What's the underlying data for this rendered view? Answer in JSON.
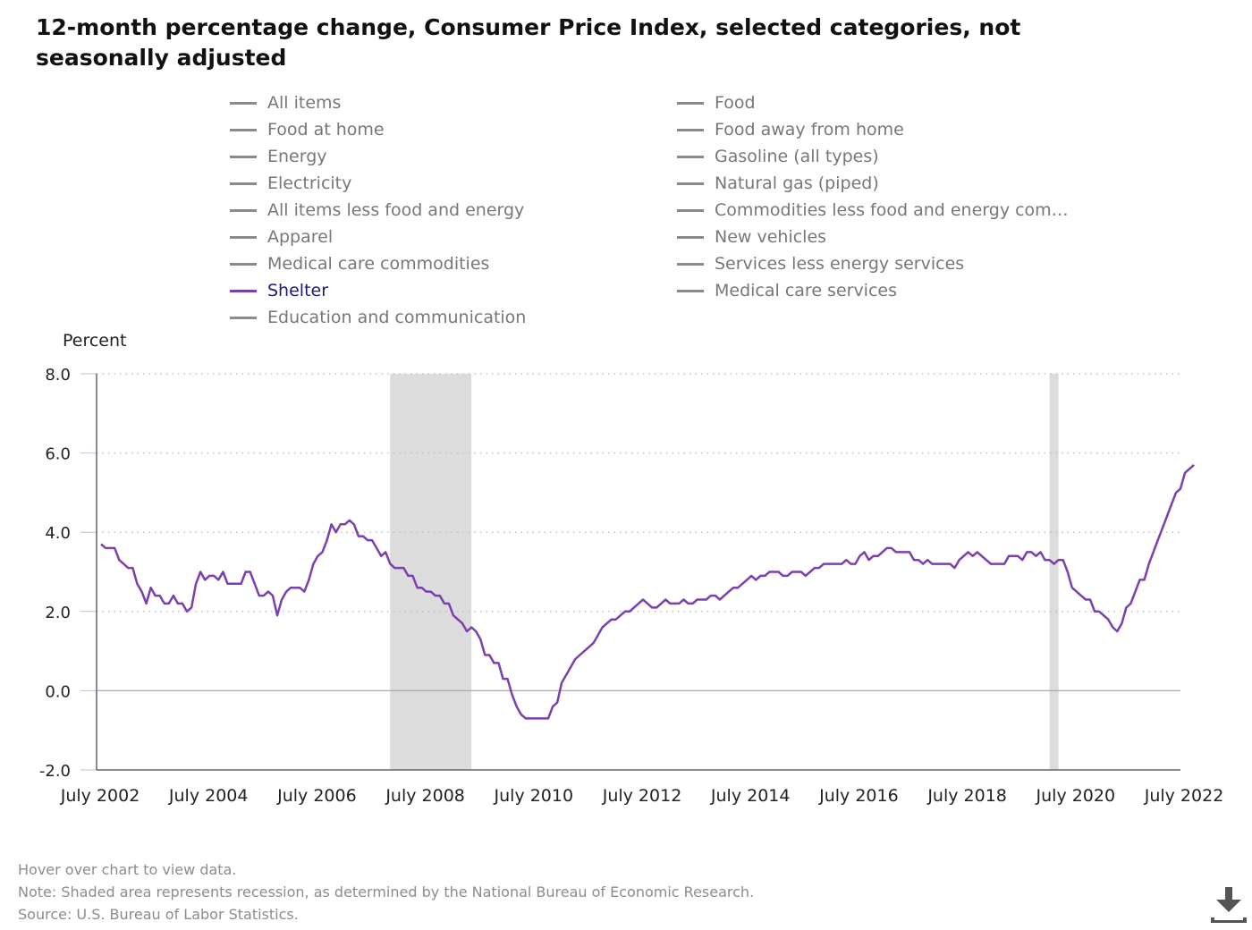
{
  "title": "12-month percentage change, Consumer Price Index, selected categories, not seasonally adjusted",
  "legend": {
    "left": [
      "All items",
      "Food at home",
      "Energy",
      "Electricity",
      "All items less food and energy",
      "Apparel",
      "Medical care commodities",
      "Shelter",
      "Education and communication"
    ],
    "right": [
      "Food",
      "Food away from home",
      "Gasoline (all types)",
      "Natural gas (piped)",
      "Commodities less food and energy com…",
      "New vehicles",
      "Services less energy services",
      "Medical care services"
    ],
    "active": "Shelter"
  },
  "footer": {
    "hover": "Hover over chart to view data.",
    "note": "Note: Shaded area represents recession, as determined by the National Bureau of Economic Research.",
    "source": "Source: U.S. Bureau of Labor Statistics."
  },
  "download_icon": "download-icon",
  "colors": {
    "series": "#7b3fb0",
    "recession": "#dcdcdc",
    "grid": "#c0c0c0",
    "axis": "#555555"
  },
  "chart_data": {
    "type": "line",
    "ylabel": "Percent",
    "ylim": [
      -2.0,
      8.0
    ],
    "yticks": [
      "8.0",
      "6.0",
      "4.0",
      "2.0",
      "0.0",
      "-2.0"
    ],
    "ytick_values": [
      8,
      6,
      4,
      2,
      0,
      -2
    ],
    "xticks": [
      "July 2002",
      "July 2004",
      "July 2006",
      "July 2008",
      "July 2010",
      "July 2012",
      "July 2014",
      "July 2016",
      "July 2018",
      "July 2020",
      "July 2022"
    ],
    "grid": "horizontal dotted",
    "recessions": [
      [
        "2007-12",
        "2009-06"
      ],
      [
        "2020-02",
        "2020-04"
      ]
    ],
    "series": [
      {
        "name": "Shelter",
        "points": [
          [
            "2002-08",
            3.7
          ],
          [
            "2002-09",
            3.6
          ],
          [
            "2002-11",
            3.6
          ],
          [
            "2002-12",
            3.3
          ],
          [
            "2003-02",
            3.1
          ],
          [
            "2003-03",
            3.1
          ],
          [
            "2003-04",
            2.7
          ],
          [
            "2003-05",
            2.5
          ],
          [
            "2003-06",
            2.2
          ],
          [
            "2003-07",
            2.6
          ],
          [
            "2003-08",
            2.4
          ],
          [
            "2003-09",
            2.4
          ],
          [
            "2003-10",
            2.2
          ],
          [
            "2003-11",
            2.2
          ],
          [
            "2003-12",
            2.4
          ],
          [
            "2004-01",
            2.2
          ],
          [
            "2004-02",
            2.2
          ],
          [
            "2004-03",
            2.0
          ],
          [
            "2004-04",
            2.1
          ],
          [
            "2004-05",
            2.7
          ],
          [
            "2004-06",
            3.0
          ],
          [
            "2004-07",
            2.8
          ],
          [
            "2004-08",
            2.9
          ],
          [
            "2004-09",
            2.9
          ],
          [
            "2004-10",
            2.8
          ],
          [
            "2004-11",
            3.0
          ],
          [
            "2004-12",
            2.7
          ],
          [
            "2005-03",
            2.7
          ],
          [
            "2005-04",
            3.0
          ],
          [
            "2005-05",
            3.0
          ],
          [
            "2005-06",
            2.7
          ],
          [
            "2005-07",
            2.4
          ],
          [
            "2005-08",
            2.4
          ],
          [
            "2005-09",
            2.5
          ],
          [
            "2005-10",
            2.4
          ],
          [
            "2005-11",
            1.9
          ],
          [
            "2005-12",
            2.3
          ],
          [
            "2006-01",
            2.5
          ],
          [
            "2006-02",
            2.6
          ],
          [
            "2006-04",
            2.6
          ],
          [
            "2006-05",
            2.5
          ],
          [
            "2006-06",
            2.8
          ],
          [
            "2006-07",
            3.2
          ],
          [
            "2006-08",
            3.4
          ],
          [
            "2006-09",
            3.5
          ],
          [
            "2006-10",
            3.8
          ],
          [
            "2006-11",
            4.2
          ],
          [
            "2006-12",
            4.0
          ],
          [
            "2007-01",
            4.2
          ],
          [
            "2007-02",
            4.2
          ],
          [
            "2007-03",
            4.3
          ],
          [
            "2007-04",
            4.2
          ],
          [
            "2007-05",
            3.9
          ],
          [
            "2007-06",
            3.9
          ],
          [
            "2007-07",
            3.8
          ],
          [
            "2007-08",
            3.8
          ],
          [
            "2007-09",
            3.6
          ],
          [
            "2007-10",
            3.4
          ],
          [
            "2007-11",
            3.5
          ],
          [
            "2007-12",
            3.2
          ],
          [
            "2008-01",
            3.1
          ],
          [
            "2008-03",
            3.1
          ],
          [
            "2008-04",
            2.9
          ],
          [
            "2008-05",
            2.9
          ],
          [
            "2008-06",
            2.6
          ],
          [
            "2008-07",
            2.6
          ],
          [
            "2008-08",
            2.5
          ],
          [
            "2008-09",
            2.5
          ],
          [
            "2008-10",
            2.4
          ],
          [
            "2008-11",
            2.4
          ],
          [
            "2008-12",
            2.2
          ],
          [
            "2009-01",
            2.2
          ],
          [
            "2009-02",
            1.9
          ],
          [
            "2009-03",
            1.8
          ],
          [
            "2009-04",
            1.7
          ],
          [
            "2009-05",
            1.5
          ],
          [
            "2009-06",
            1.6
          ],
          [
            "2009-07",
            1.5
          ],
          [
            "2009-08",
            1.3
          ],
          [
            "2009-09",
            0.9
          ],
          [
            "2009-10",
            0.9
          ],
          [
            "2009-11",
            0.7
          ],
          [
            "2009-12",
            0.7
          ],
          [
            "2010-01",
            0.3
          ],
          [
            "2010-02",
            0.3
          ],
          [
            "2010-03",
            -0.1
          ],
          [
            "2010-04",
            -0.4
          ],
          [
            "2010-05",
            -0.6
          ],
          [
            "2010-06",
            -0.7
          ],
          [
            "2010-11",
            -0.7
          ],
          [
            "2010-12",
            -0.4
          ],
          [
            "2011-01",
            -0.3
          ],
          [
            "2011-02",
            0.2
          ],
          [
            "2011-03",
            0.4
          ],
          [
            "2011-04",
            0.6
          ],
          [
            "2011-05",
            0.8
          ],
          [
            "2011-06",
            0.9
          ],
          [
            "2011-07",
            1.0
          ],
          [
            "2011-08",
            1.1
          ],
          [
            "2011-09",
            1.2
          ],
          [
            "2011-10",
            1.4
          ],
          [
            "2011-11",
            1.6
          ],
          [
            "2011-12",
            1.7
          ],
          [
            "2012-01",
            1.8
          ],
          [
            "2012-02",
            1.8
          ],
          [
            "2012-03",
            1.9
          ],
          [
            "2012-04",
            2.0
          ],
          [
            "2012-05",
            2.0
          ],
          [
            "2012-06",
            2.1
          ],
          [
            "2012-07",
            2.2
          ],
          [
            "2012-08",
            2.3
          ],
          [
            "2012-09",
            2.2
          ],
          [
            "2012-10",
            2.1
          ],
          [
            "2012-11",
            2.1
          ],
          [
            "2012-12",
            2.2
          ],
          [
            "2013-01",
            2.3
          ],
          [
            "2013-02",
            2.2
          ],
          [
            "2013-03",
            2.2
          ],
          [
            "2013-04",
            2.2
          ],
          [
            "2013-05",
            2.3
          ],
          [
            "2013-06",
            2.2
          ],
          [
            "2013-07",
            2.2
          ],
          [
            "2013-08",
            2.3
          ],
          [
            "2013-09",
            2.3
          ],
          [
            "2013-10",
            2.3
          ],
          [
            "2013-11",
            2.4
          ],
          [
            "2013-12",
            2.4
          ],
          [
            "2014-01",
            2.3
          ],
          [
            "2014-02",
            2.4
          ],
          [
            "2014-03",
            2.5
          ],
          [
            "2014-04",
            2.6
          ],
          [
            "2014-05",
            2.6
          ],
          [
            "2014-06",
            2.7
          ],
          [
            "2014-07",
            2.8
          ],
          [
            "2014-08",
            2.9
          ],
          [
            "2014-09",
            2.8
          ],
          [
            "2014-10",
            2.9
          ],
          [
            "2014-11",
            2.9
          ],
          [
            "2014-12",
            3.0
          ],
          [
            "2015-02",
            3.0
          ],
          [
            "2015-03",
            2.9
          ],
          [
            "2015-04",
            2.9
          ],
          [
            "2015-05",
            3.0
          ],
          [
            "2015-07",
            3.0
          ],
          [
            "2015-08",
            2.9
          ],
          [
            "2015-09",
            3.0
          ],
          [
            "2015-10",
            3.1
          ],
          [
            "2015-11",
            3.1
          ],
          [
            "2015-12",
            3.2
          ],
          [
            "2016-04",
            3.2
          ],
          [
            "2016-05",
            3.3
          ],
          [
            "2016-06",
            3.2
          ],
          [
            "2016-07",
            3.2
          ],
          [
            "2016-08",
            3.4
          ],
          [
            "2016-09",
            3.5
          ],
          [
            "2016-10",
            3.3
          ],
          [
            "2016-11",
            3.4
          ],
          [
            "2016-12",
            3.4
          ],
          [
            "2017-01",
            3.5
          ],
          [
            "2017-02",
            3.6
          ],
          [
            "2017-03",
            3.6
          ],
          [
            "2017-04",
            3.5
          ],
          [
            "2017-07",
            3.5
          ],
          [
            "2017-08",
            3.3
          ],
          [
            "2017-09",
            3.3
          ],
          [
            "2017-10",
            3.2
          ],
          [
            "2017-11",
            3.3
          ],
          [
            "2017-12",
            3.2
          ],
          [
            "2018-04",
            3.2
          ],
          [
            "2018-05",
            3.1
          ],
          [
            "2018-06",
            3.3
          ],
          [
            "2018-07",
            3.4
          ],
          [
            "2018-08",
            3.5
          ],
          [
            "2018-09",
            3.4
          ],
          [
            "2018-10",
            3.5
          ],
          [
            "2018-11",
            3.4
          ],
          [
            "2018-12",
            3.3
          ],
          [
            "2019-01",
            3.2
          ],
          [
            "2019-04",
            3.2
          ],
          [
            "2019-05",
            3.4
          ],
          [
            "2019-07",
            3.4
          ],
          [
            "2019-08",
            3.3
          ],
          [
            "2019-09",
            3.5
          ],
          [
            "2019-10",
            3.5
          ],
          [
            "2019-11",
            3.4
          ],
          [
            "2019-12",
            3.5
          ],
          [
            "2020-01",
            3.3
          ],
          [
            "2020-02",
            3.3
          ],
          [
            "2020-03",
            3.2
          ],
          [
            "2020-04",
            3.3
          ],
          [
            "2020-05",
            3.3
          ],
          [
            "2020-06",
            3.0
          ],
          [
            "2020-07",
            2.6
          ],
          [
            "2020-08",
            2.5
          ],
          [
            "2020-09",
            2.4
          ],
          [
            "2020-10",
            2.3
          ],
          [
            "2020-11",
            2.3
          ],
          [
            "2020-12",
            2.0
          ],
          [
            "2021-01",
            2.0
          ],
          [
            "2021-02",
            1.9
          ],
          [
            "2021-03",
            1.8
          ],
          [
            "2021-04",
            1.6
          ],
          [
            "2021-05",
            1.5
          ],
          [
            "2021-06",
            1.7
          ],
          [
            "2021-07",
            2.1
          ],
          [
            "2021-08",
            2.2
          ],
          [
            "2021-09",
            2.5
          ],
          [
            "2021-10",
            2.8
          ],
          [
            "2021-11",
            2.8
          ],
          [
            "2021-12",
            3.2
          ],
          [
            "2022-01",
            3.5
          ],
          [
            "2022-02",
            3.8
          ],
          [
            "2022-03",
            4.1
          ],
          [
            "2022-04",
            4.4
          ],
          [
            "2022-05",
            4.7
          ],
          [
            "2022-06",
            5.0
          ],
          [
            "2022-07",
            5.1
          ],
          [
            "2022-08",
            5.5
          ],
          [
            "2022-09",
            5.6
          ],
          [
            "2022-10",
            5.7
          ]
        ]
      }
    ]
  }
}
